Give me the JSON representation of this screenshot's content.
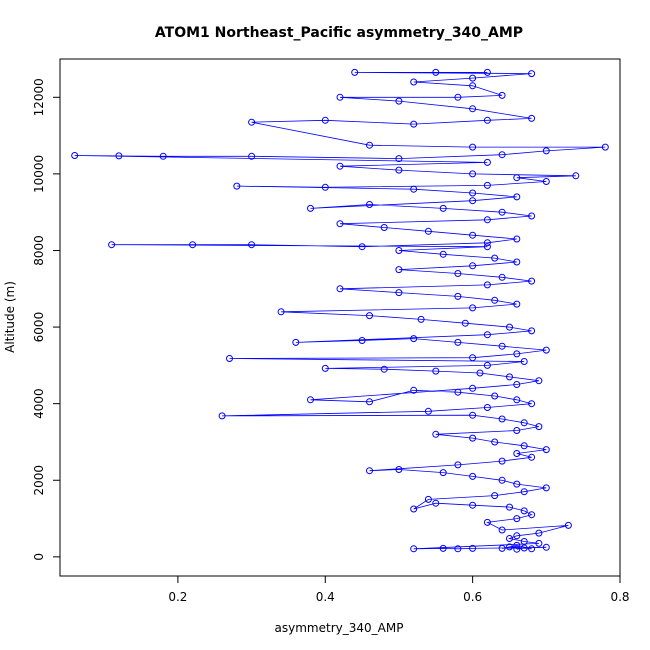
{
  "chart_data": {
    "type": "scatter",
    "title": "ATOM1 Northeast_Pacific asymmetry_340_AMP",
    "xlabel": "asymmetry_340_AMP",
    "ylabel": "Altitude (m)",
    "xlim": [
      0.04,
      0.8
    ],
    "ylim": [
      -500,
      13000
    ],
    "xticks": [
      0.2,
      0.4,
      0.6,
      0.8
    ],
    "yticks": [
      0,
      2000,
      4000,
      6000,
      8000,
      10000,
      12000
    ],
    "x_tick_labels": [
      "0.2",
      "0.4",
      "0.6",
      "0.8"
    ],
    "y_tick_labels": [
      "0",
      "2000",
      "4000",
      "6000",
      "8000",
      "10000",
      "12000"
    ],
    "grid": false,
    "legend": "none",
    "series": [
      {
        "marker": "open-circle",
        "line": "connected",
        "color": "#0000ff",
        "points": [
          [
            0.66,
            200
          ],
          [
            0.67,
            230
          ],
          [
            0.65,
            260
          ],
          [
            0.68,
            210
          ],
          [
            0.66,
            300
          ],
          [
            0.64,
            220
          ],
          [
            0.7,
            250
          ],
          [
            0.6,
            220
          ],
          [
            0.58,
            210
          ],
          [
            0.56,
            220
          ],
          [
            0.52,
            210
          ],
          [
            0.69,
            350
          ],
          [
            0.67,
            400
          ],
          [
            0.65,
            480
          ],
          [
            0.66,
            550
          ],
          [
            0.69,
            620
          ],
          [
            0.73,
            820
          ],
          [
            0.64,
            700
          ],
          [
            0.62,
            900
          ],
          [
            0.66,
            1000
          ],
          [
            0.68,
            1100
          ],
          [
            0.67,
            1200
          ],
          [
            0.65,
            1300
          ],
          [
            0.6,
            1350
          ],
          [
            0.55,
            1400
          ],
          [
            0.52,
            1250
          ],
          [
            0.54,
            1500
          ],
          [
            0.63,
            1600
          ],
          [
            0.67,
            1700
          ],
          [
            0.7,
            1800
          ],
          [
            0.66,
            1900
          ],
          [
            0.64,
            2000
          ],
          [
            0.6,
            2100
          ],
          [
            0.56,
            2200
          ],
          [
            0.5,
            2280
          ],
          [
            0.46,
            2250
          ],
          [
            0.58,
            2400
          ],
          [
            0.64,
            2500
          ],
          [
            0.68,
            2600
          ],
          [
            0.66,
            2700
          ],
          [
            0.7,
            2800
          ],
          [
            0.67,
            2900
          ],
          [
            0.63,
            3000
          ],
          [
            0.6,
            3100
          ],
          [
            0.55,
            3200
          ],
          [
            0.66,
            3300
          ],
          [
            0.69,
            3400
          ],
          [
            0.67,
            3500
          ],
          [
            0.64,
            3600
          ],
          [
            0.6,
            3700
          ],
          [
            0.26,
            3680
          ],
          [
            0.54,
            3800
          ],
          [
            0.62,
            3900
          ],
          [
            0.68,
            4000
          ],
          [
            0.66,
            4100
          ],
          [
            0.63,
            4200
          ],
          [
            0.58,
            4300
          ],
          [
            0.52,
            4350
          ],
          [
            0.46,
            4050
          ],
          [
            0.38,
            4100
          ],
          [
            0.6,
            4400
          ],
          [
            0.66,
            4500
          ],
          [
            0.69,
            4600
          ],
          [
            0.65,
            4700
          ],
          [
            0.61,
            4800
          ],
          [
            0.55,
            4850
          ],
          [
            0.48,
            4900
          ],
          [
            0.4,
            4920
          ],
          [
            0.62,
            5000
          ],
          [
            0.67,
            5100
          ],
          [
            0.27,
            5180
          ],
          [
            0.6,
            5200
          ],
          [
            0.66,
            5300
          ],
          [
            0.7,
            5400
          ],
          [
            0.64,
            5500
          ],
          [
            0.58,
            5600
          ],
          [
            0.52,
            5700
          ],
          [
            0.45,
            5650
          ],
          [
            0.36,
            5600
          ],
          [
            0.62,
            5800
          ],
          [
            0.68,
            5900
          ],
          [
            0.65,
            6000
          ],
          [
            0.59,
            6100
          ],
          [
            0.53,
            6200
          ],
          [
            0.46,
            6300
          ],
          [
            0.34,
            6400
          ],
          [
            0.6,
            6500
          ],
          [
            0.66,
            6600
          ],
          [
            0.63,
            6700
          ],
          [
            0.58,
            6800
          ],
          [
            0.5,
            6900
          ],
          [
            0.42,
            7000
          ],
          [
            0.62,
            7100
          ],
          [
            0.68,
            7200
          ],
          [
            0.64,
            7300
          ],
          [
            0.58,
            7400
          ],
          [
            0.5,
            7500
          ],
          [
            0.6,
            7600
          ],
          [
            0.66,
            7700
          ],
          [
            0.63,
            7800
          ],
          [
            0.56,
            7900
          ],
          [
            0.5,
            8000
          ],
          [
            0.62,
            8100
          ],
          [
            0.11,
            8150
          ],
          [
            0.22,
            8150
          ],
          [
            0.3,
            8150
          ],
          [
            0.45,
            8100
          ],
          [
            0.62,
            8200
          ],
          [
            0.66,
            8300
          ],
          [
            0.6,
            8400
          ],
          [
            0.54,
            8500
          ],
          [
            0.48,
            8600
          ],
          [
            0.42,
            8700
          ],
          [
            0.62,
            8800
          ],
          [
            0.68,
            8900
          ],
          [
            0.64,
            9000
          ],
          [
            0.56,
            9100
          ],
          [
            0.46,
            9200
          ],
          [
            0.38,
            9100
          ],
          [
            0.6,
            9300
          ],
          [
            0.66,
            9400
          ],
          [
            0.6,
            9500
          ],
          [
            0.52,
            9600
          ],
          [
            0.28,
            9680
          ],
          [
            0.4,
            9650
          ],
          [
            0.62,
            9700
          ],
          [
            0.7,
            9800
          ],
          [
            0.66,
            9900
          ],
          [
            0.74,
            9950
          ],
          [
            0.6,
            10000
          ],
          [
            0.5,
            10100
          ],
          [
            0.42,
            10200
          ],
          [
            0.62,
            10300
          ],
          [
            0.06,
            10480
          ],
          [
            0.12,
            10470
          ],
          [
            0.18,
            10460
          ],
          [
            0.3,
            10460
          ],
          [
            0.5,
            10400
          ],
          [
            0.64,
            10500
          ],
          [
            0.7,
            10600
          ],
          [
            0.78,
            10700
          ],
          [
            0.6,
            10700
          ],
          [
            0.46,
            10750
          ],
          [
            0.3,
            11350
          ],
          [
            0.4,
            11400
          ],
          [
            0.52,
            11300
          ],
          [
            0.62,
            11400
          ],
          [
            0.68,
            11450
          ],
          [
            0.6,
            11700
          ],
          [
            0.5,
            11900
          ],
          [
            0.42,
            12000
          ],
          [
            0.58,
            12000
          ],
          [
            0.64,
            12050
          ],
          [
            0.6,
            12300
          ],
          [
            0.52,
            12400
          ],
          [
            0.6,
            12500
          ],
          [
            0.68,
            12620
          ],
          [
            0.44,
            12650
          ],
          [
            0.55,
            12650
          ],
          [
            0.62,
            12650
          ]
        ]
      }
    ]
  }
}
